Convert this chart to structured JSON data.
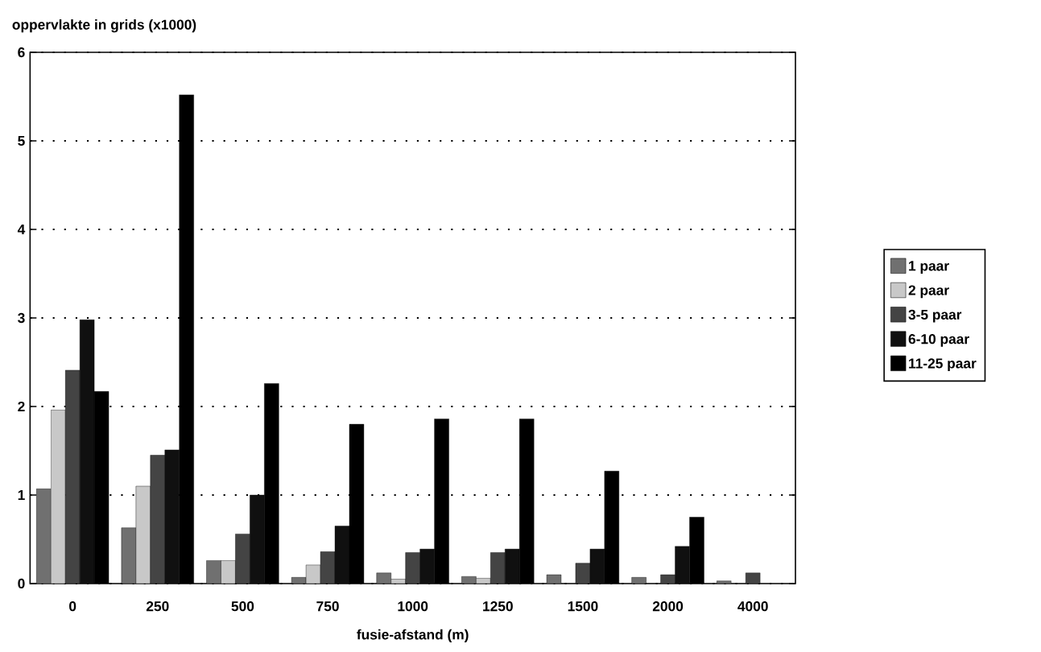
{
  "chart_data": {
    "type": "bar",
    "ylabel": "oppervlakte in grids (x1000)",
    "xlabel": "fusie-afstand (m)",
    "categories": [
      "0",
      "250",
      "500",
      "750",
      "1000",
      "1250",
      "1500",
      "2000",
      "4000"
    ],
    "series": [
      {
        "name": "1 paar",
        "color": "#707070",
        "values": [
          1.07,
          0.63,
          0.26,
          0.07,
          0.12,
          0.08,
          0.1,
          0.07,
          0.03
        ]
      },
      {
        "name": "2 paar",
        "color": "#c8c8c8",
        "values": [
          1.96,
          1.1,
          0.26,
          0.21,
          0.05,
          0.06,
          null,
          null,
          null
        ]
      },
      {
        "name": "3-5 paar",
        "color": "#444444",
        "values": [
          2.41,
          1.45,
          0.56,
          0.36,
          0.35,
          0.35,
          0.23,
          0.1,
          0.12
        ]
      },
      {
        "name": "6-10 paar",
        "color": "#101010",
        "values": [
          2.98,
          1.51,
          1.0,
          0.65,
          0.39,
          0.39,
          0.39,
          0.42,
          null
        ]
      },
      {
        "name": "11-25 paar",
        "color": "#000000",
        "values": [
          2.17,
          5.52,
          2.26,
          1.8,
          1.86,
          1.86,
          1.27,
          0.75,
          null
        ]
      }
    ],
    "ylim": [
      0,
      6
    ],
    "yticks": [
      0,
      1,
      2,
      3,
      4,
      5,
      6
    ],
    "grid": "y",
    "legend": "right"
  }
}
